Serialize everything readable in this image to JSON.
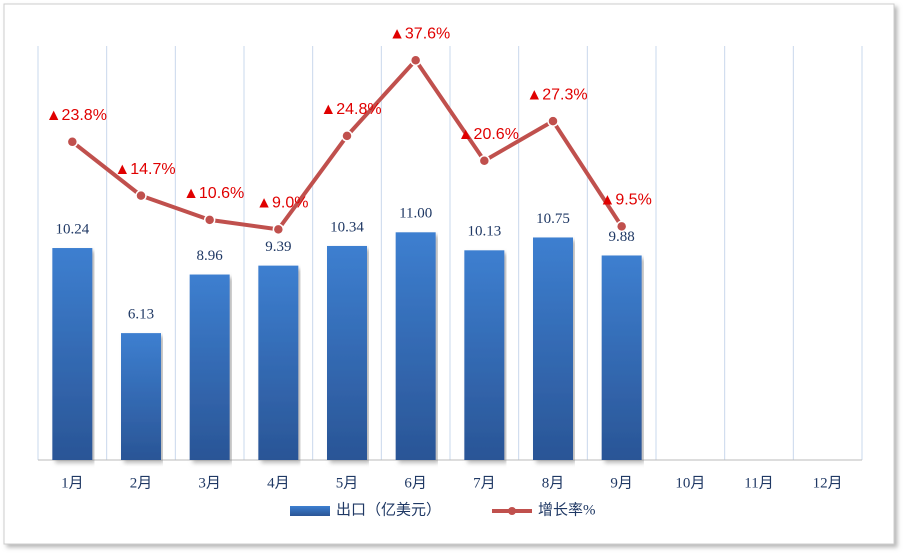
{
  "chart_data": {
    "type": "bar-line",
    "categories": [
      "1月",
      "2月",
      "3月",
      "4月",
      "5月",
      "6月",
      "7月",
      "8月",
      "9月",
      "10月",
      "11月",
      "12月"
    ],
    "series": [
      {
        "name": "出口（亿美元）",
        "type": "bar",
        "color": "#3a78c9",
        "values": [
          10.24,
          6.13,
          8.96,
          9.39,
          10.34,
          11.0,
          10.13,
          10.75,
          9.88,
          null,
          null,
          null
        ],
        "value_labels": [
          "10.24",
          "6.13",
          "8.96",
          "9.39",
          "10.34",
          "11.00",
          "10.13",
          "10.75",
          "9.88",
          null,
          null,
          null
        ]
      },
      {
        "name": "增长率%",
        "type": "line",
        "axis": "y2",
        "color": "#c0504d",
        "values": [
          23.8,
          14.7,
          10.6,
          9.0,
          24.8,
          37.6,
          20.6,
          27.3,
          9.5,
          null,
          null,
          null
        ],
        "value_labels": [
          "▲23.8%",
          "▲14.7%",
          "▲10.6%",
          "▲9.0%",
          "▲24.8%",
          "▲37.6%",
          "▲20.6%",
          "▲27.3%",
          "▲9.5%",
          null,
          null,
          null
        ]
      }
    ],
    "ylim": [
      0,
      20
    ],
    "y2lim": [
      -30,
      40
    ],
    "legend": "bottom"
  }
}
